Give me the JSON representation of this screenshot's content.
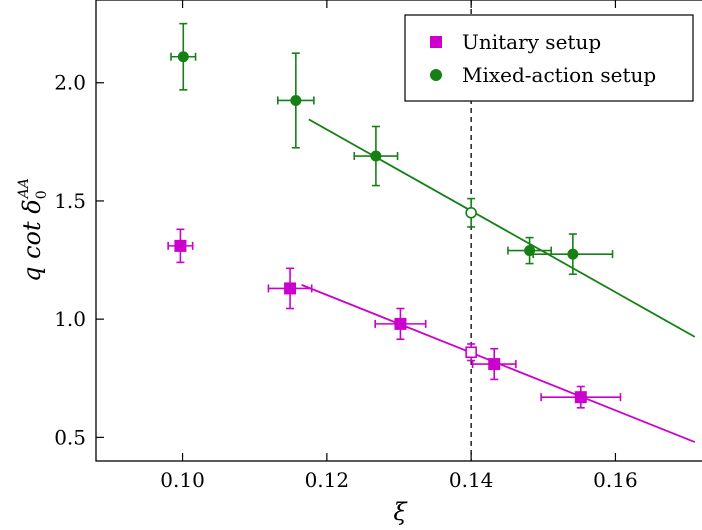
{
  "chart_data": {
    "type": "scatter",
    "xlabel": "ξ",
    "ylabel": "q cot δ₀^AA",
    "xlim": [
      0.088,
      0.172
    ],
    "ylim": [
      0.4,
      2.35
    ],
    "xticks": [
      0.1,
      0.12,
      0.14,
      0.16
    ],
    "xtick_labels": [
      "0.10",
      "0.12",
      "0.14",
      "0.16"
    ],
    "yticks": [
      0.5,
      1.0,
      1.5,
      2.0
    ],
    "ytick_labels": [
      "0.5",
      "1.0",
      "1.5",
      "2.0"
    ],
    "vline_x": 0.14,
    "grid": false,
    "legend_position": "top-right",
    "series": [
      {
        "name": "Unitary setup",
        "color": "#cc00cc",
        "marker": "square",
        "points": [
          {
            "x": 0.0997,
            "y": 1.31,
            "xerr": 0.0017,
            "yerr": 0.07
          },
          {
            "x": 0.1149,
            "y": 1.13,
            "xerr": 0.003,
            "yerr": 0.085
          },
          {
            "x": 0.1302,
            "y": 0.98,
            "xerr": 0.0035,
            "yerr": 0.065
          },
          {
            "x": 0.1432,
            "y": 0.81,
            "xerr": 0.003,
            "yerr": 0.065
          },
          {
            "x": 0.1552,
            "y": 0.67,
            "xerr": 0.0055,
            "yerr": 0.045
          }
        ],
        "fit_line": [
          [
            0.1165,
            1.145
          ],
          [
            0.171,
            0.48
          ]
        ],
        "extrapolated": {
          "x": 0.14,
          "y": 0.86,
          "yerr": 0.035
        }
      },
      {
        "name": "Mixed-action setup",
        "color": "#168016",
        "marker": "circle",
        "points": [
          {
            "x": 0.1001,
            "y": 2.11,
            "xerr": 0.0017,
            "yerr": 0.14
          },
          {
            "x": 0.1157,
            "y": 1.925,
            "xerr": 0.0025,
            "yerr": 0.2
          },
          {
            "x": 0.1268,
            "y": 1.69,
            "xerr": 0.003,
            "yerr": 0.125
          },
          {
            "x": 0.1481,
            "y": 1.29,
            "xerr": 0.003,
            "yerr": 0.055
          },
          {
            "x": 0.1541,
            "y": 1.275,
            "xerr": 0.0055,
            "yerr": 0.085
          }
        ],
        "fit_line": [
          [
            0.1175,
            1.845
          ],
          [
            0.171,
            0.925
          ]
        ],
        "extrapolated": {
          "x": 0.14,
          "y": 1.45,
          "yerr": 0.06
        }
      }
    ]
  }
}
